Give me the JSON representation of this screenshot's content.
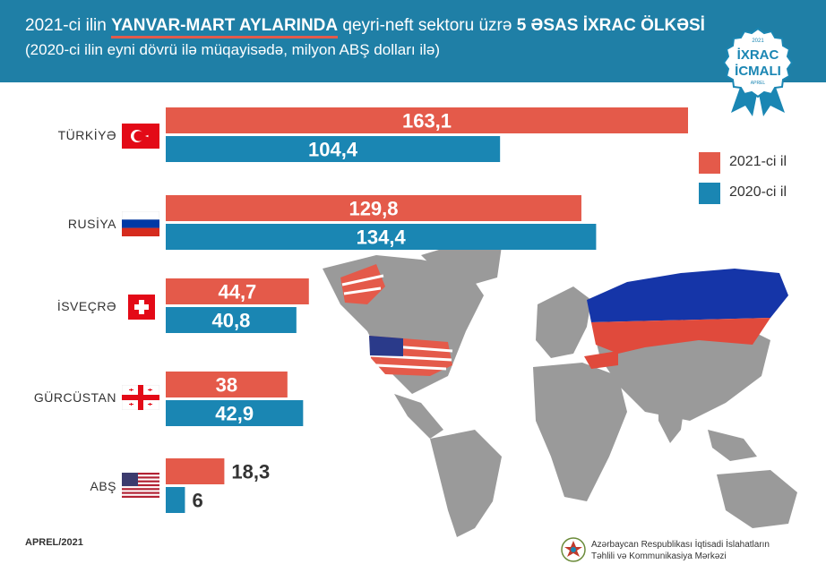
{
  "header": {
    "year_prefix": "2021-ci ilin ",
    "period": "YANVAR-MART AYLARINDA",
    "middle": " qeyri-neft sektoru üzrə ",
    "highlight": "5 ƏSAS İXRAC ÖLKƏSİ",
    "subtitle": "(2020-ci ilin eyni dövrü ilə müqayisədə, milyon ABŞ dolları ilə)"
  },
  "badge": {
    "year": "2021",
    "line1": "İXRAC",
    "line2": "İCMALI",
    "month": "APREL"
  },
  "colors": {
    "header": "#1f7fa6",
    "series_2021": "#e45a4a",
    "series_2020": "#1a86b3",
    "map_land": "#9a9a9a"
  },
  "chart_data": {
    "type": "bar",
    "orientation": "horizontal",
    "categories": [
      "TÜRKİYƏ",
      "RUSİYA",
      "İSVEÇRƏ",
      "GÜRCÜSTAN",
      "ABŞ"
    ],
    "series": [
      {
        "name": "2021-ci il",
        "values": [
          163.1,
          129.8,
          44.7,
          38,
          18.3
        ],
        "labels": [
          "163,1",
          "129,8",
          "44,7",
          "38",
          "18,3"
        ]
      },
      {
        "name": "2020-ci il",
        "values": [
          104.4,
          134.4,
          40.8,
          42.9,
          6
        ],
        "labels": [
          "104,4",
          "134,4",
          "40,8",
          "42,9",
          "6"
        ]
      }
    ],
    "legend": "right",
    "grid": false
  },
  "footer": {
    "date": "APREL/2021",
    "org_line1": "Azərbaycan Respublikası İqtisadi İslahatların",
    "org_line2": "Təhlili və Kommunikasiya Mərkəzi"
  }
}
